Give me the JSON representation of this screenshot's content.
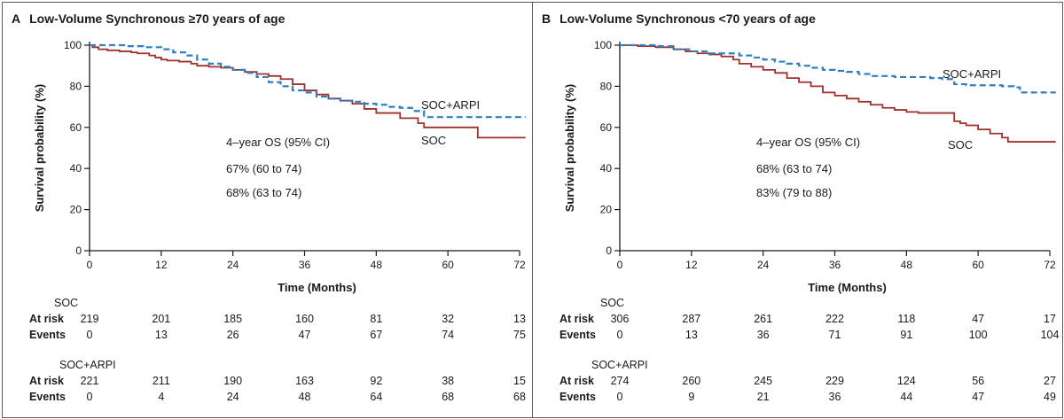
{
  "colors": {
    "soc": "#a0302a",
    "soc_arpi": "#2f7fc1",
    "axis": "#1a1a1a"
  },
  "chart_data": [
    {
      "type": "line",
      "letter": "A",
      "title": "Low-Volume Synchronous ≥70 years of age",
      "xlabel": "Time (Months)",
      "ylabel": "Survival probability (%)",
      "xlim": [
        0,
        72
      ],
      "ylim": [
        0,
        100
      ],
      "xticks": [
        0,
        12,
        24,
        36,
        48,
        60,
        72
      ],
      "yticks": [
        0,
        20,
        40,
        60,
        80,
        100
      ],
      "annotation": {
        "header": "4–year OS (95% CI)",
        "line1": "67% (60 to 74)",
        "line2": "68% (63 to 74)"
      },
      "series": [
        {
          "name": "SOC",
          "style": "solid",
          "x": [
            0,
            0.5,
            1.5,
            3,
            5,
            7,
            8,
            10,
            11,
            12,
            13,
            15,
            17,
            18,
            20,
            22,
            24,
            26,
            28,
            30,
            32,
            34,
            36,
            38,
            40,
            42,
            44,
            46,
            48,
            50,
            52,
            55,
            56,
            58,
            60,
            62,
            64,
            65,
            67,
            70,
            73
          ],
          "y": [
            100,
            99,
            98,
            97.5,
            97,
            96.5,
            96,
            95,
            94,
            93,
            92.5,
            92,
            91,
            90,
            89.5,
            89,
            88,
            87,
            86,
            85,
            83.5,
            81,
            78,
            76,
            74,
            73,
            71.5,
            69,
            67,
            67,
            64.5,
            62,
            60,
            60,
            60,
            60,
            60,
            55,
            55,
            55,
            55
          ]
        },
        {
          "name": "SOC+ARPI",
          "style": "dashed",
          "x": [
            0,
            3,
            6,
            9,
            12,
            14,
            16,
            18,
            20,
            22,
            24,
            26,
            28,
            30,
            32,
            34,
            36,
            38,
            40,
            42,
            44,
            46,
            48,
            50,
            52,
            54,
            56,
            58,
            60,
            62,
            64,
            66,
            68,
            70,
            73
          ],
          "y": [
            100,
            100,
            99.5,
            99,
            98,
            96.5,
            95,
            93,
            91,
            89.5,
            88,
            86.5,
            84.5,
            82,
            80,
            78,
            77,
            75,
            74,
            73,
            72.5,
            71.5,
            71,
            70,
            69.5,
            68,
            65,
            65,
            65,
            65,
            65,
            65,
            65,
            65,
            65
          ]
        }
      ],
      "series_labels": {
        "soc_arpi": "SOC+ARPI",
        "soc": "SOC"
      },
      "risk_tables": [
        {
          "group": "SOC",
          "at_risk_label": "At risk",
          "events_label": "Events",
          "at_risk": [
            219,
            201,
            185,
            160,
            81,
            32,
            13
          ],
          "events": [
            0,
            13,
            26,
            47,
            67,
            74,
            75
          ]
        },
        {
          "group": "SOC+ARPI",
          "at_risk_label": "At risk",
          "events_label": "Events",
          "at_risk": [
            221,
            211,
            190,
            163,
            92,
            38,
            15
          ],
          "events": [
            0,
            4,
            24,
            48,
            64,
            68,
            68
          ]
        }
      ]
    },
    {
      "type": "line",
      "letter": "B",
      "title": "Low-Volume Synchronous <70 years of age",
      "xlabel": "Time (Months)",
      "ylabel": "Survival probability (%)",
      "xlim": [
        0,
        72
      ],
      "ylim": [
        0,
        100
      ],
      "xticks": [
        0,
        12,
        24,
        36,
        48,
        60,
        72
      ],
      "yticks": [
        0,
        20,
        40,
        60,
        80,
        100
      ],
      "annotation": {
        "header": "4–year OS (95% CI)",
        "line1": "68% (63 to 74)",
        "line2": "83% (79 to 88)"
      },
      "series": [
        {
          "name": "SOC",
          "style": "solid",
          "x": [
            0,
            3,
            6,
            9,
            11,
            13,
            15,
            17,
            19,
            20,
            22,
            24,
            26,
            28,
            30,
            32,
            34,
            36,
            38,
            40,
            42,
            44,
            46,
            48,
            50,
            52,
            54,
            56,
            57,
            58,
            60,
            62,
            64,
            65,
            67,
            70,
            73
          ],
          "y": [
            100,
            99.5,
            99,
            98,
            97,
            96,
            95.5,
            94.5,
            93,
            91,
            89.5,
            88,
            86.5,
            84,
            82,
            80,
            77,
            75.5,
            74,
            72.5,
            71,
            69.5,
            68.5,
            67.5,
            67,
            67,
            67,
            63,
            62,
            61,
            59,
            57,
            55,
            53,
            53,
            53,
            53
          ]
        },
        {
          "name": "SOC+ARPI",
          "style": "dashed",
          "x": [
            0,
            3,
            6,
            9,
            12,
            15,
            18,
            20,
            22,
            24,
            26,
            28,
            30,
            32,
            34,
            36,
            38,
            40,
            42,
            44,
            46,
            48,
            50,
            52,
            54,
            56,
            58,
            60,
            62,
            64,
            66,
            67,
            70,
            73
          ],
          "y": [
            100,
            100,
            99.5,
            98,
            97,
            96,
            96,
            95,
            94,
            93,
            92,
            91,
            90,
            89,
            88,
            87.5,
            87,
            86,
            85,
            85,
            84.5,
            84.5,
            84.5,
            84,
            83.5,
            81,
            80.5,
            80.5,
            80.5,
            80,
            79.5,
            77,
            77,
            77
          ]
        }
      ],
      "series_labels": {
        "soc_arpi": "SOC+ARPI",
        "soc": "SOC"
      },
      "risk_tables": [
        {
          "group": "SOC",
          "at_risk_label": "At risk",
          "events_label": "Events",
          "at_risk": [
            306,
            287,
            261,
            222,
            118,
            47,
            17
          ],
          "events": [
            0,
            13,
            36,
            71,
            91,
            100,
            104
          ]
        },
        {
          "group": "SOC+ARPI",
          "at_risk_label": "At risk",
          "events_label": "Events",
          "at_risk": [
            274,
            260,
            245,
            229,
            124,
            56,
            27
          ],
          "events": [
            0,
            9,
            21,
            36,
            44,
            47,
            49
          ]
        }
      ]
    }
  ]
}
